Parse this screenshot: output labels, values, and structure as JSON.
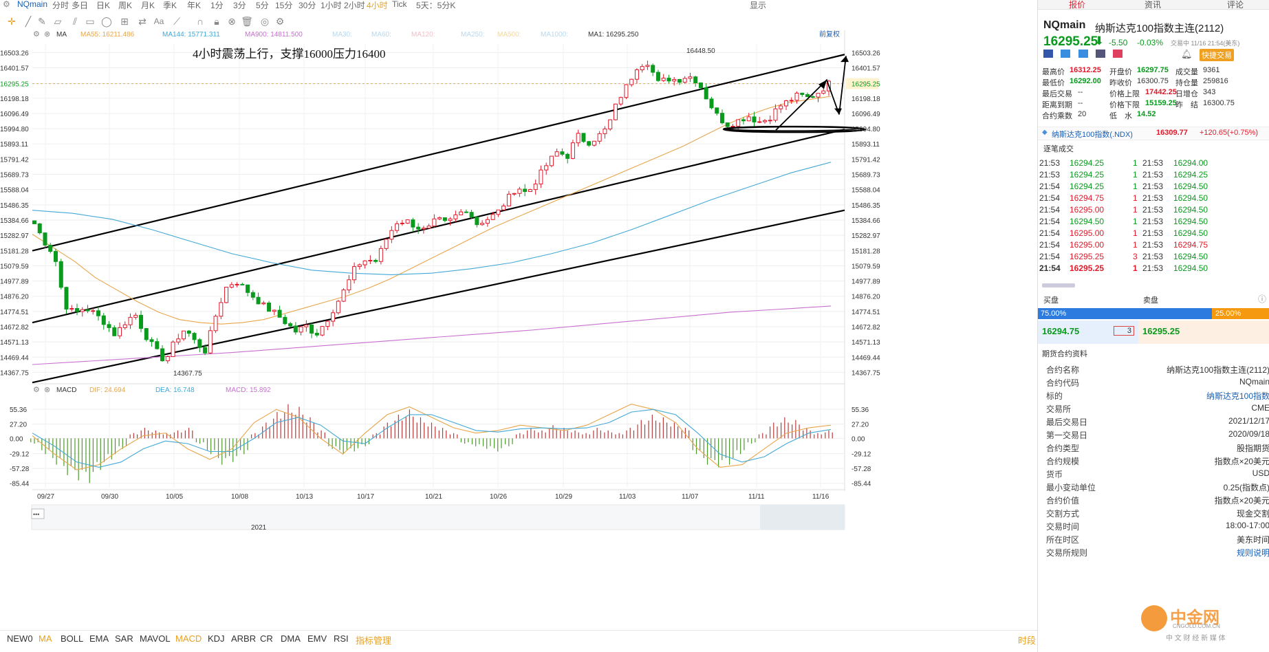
{
  "topbar": {
    "symbol": "NQmain",
    "periods": [
      "分时",
      "多日",
      "日K",
      "周K",
      "月K",
      "季K",
      "年K",
      "1分",
      "3分",
      "5分",
      "15分",
      "30分",
      "1小时",
      "2小时",
      "4小时",
      "Tick",
      "5天：5分K"
    ],
    "active_period": "4小时",
    "display_label": "显示"
  },
  "indicator_bar": {
    "ma_label": "MA",
    "ma55": "MA55: 16211.486",
    "ma144": "MA144: 15771.311",
    "ma900": "MA900: 14811.500",
    "ma30": "MA30:",
    "ma60": "MA60:",
    "ma120": "MA120:",
    "ma250": "MA250:",
    "ma500": "MA500:",
    "ma1000": "MA1000:",
    "ma1": "MA1: 16295.250",
    "fuquan": "前复权",
    "macd_label": "MACD",
    "dif": "DIF: 24.694",
    "dea": "DEA: 16.748",
    "macd": "MACD: 15.892"
  },
  "colors": {
    "up": "#e0192a",
    "down": "#0a9a1e",
    "ma55": "#e8a54a",
    "ma144": "#42a8d6",
    "ma900": "#c86fd0",
    "dif": "#e8a54a",
    "dea": "#42a8d6"
  },
  "chart_data": [
    {
      "type": "candlestick",
      "annotation": "4小时震荡上行，支撑16000压力16400",
      "current_price": "16295.25",
      "high_label": "16448.50",
      "low_label": "14367.75",
      "y_ticks": [
        "16503.26",
        "16401.57",
        "16295.25",
        "16198.18",
        "16096.49",
        "15994.80",
        "15893.11",
        "15791.42",
        "15689.73",
        "15588.04",
        "15486.35",
        "15384.66",
        "15282.97",
        "15181.28",
        "15079.59",
        "14977.89",
        "14876.20",
        "14774.51",
        "14672.82",
        "14571.13",
        "14469.44",
        "14367.75"
      ],
      "x_ticks": [
        "09/27",
        "09/30",
        "10/05",
        "10/08",
        "10/13",
        "10/17",
        "10/21",
        "10/26",
        "10/29",
        "11/03",
        "11/07",
        "11/11",
        "11/16"
      ],
      "ylim": [
        14310,
        16560
      ],
      "close_path": [
        15360,
        15240,
        15150,
        14820,
        14760,
        14800,
        14760,
        14700,
        14620,
        14700,
        14760,
        14620,
        14520,
        14440,
        14580,
        14660,
        14570,
        14510,
        14740,
        14930,
        14980,
        14920,
        14860,
        14800,
        14760,
        14700,
        14640,
        14680,
        14620,
        14710,
        14820,
        14940,
        15080,
        15120,
        15110,
        15260,
        15370,
        15380,
        15340,
        15310,
        15390,
        15360,
        15420,
        15460,
        15360,
        15390,
        15430,
        15520,
        15610,
        15560,
        15660,
        15760,
        15840,
        15810,
        15950,
        15900,
        15940,
        16000,
        16180,
        16290,
        16420,
        16440,
        16300,
        16330,
        16320,
        16350,
        16310,
        16180,
        16070,
        16020,
        16050,
        16080,
        16040,
        16060,
        16140,
        16180,
        16220,
        16200,
        16240,
        16295
      ],
      "ma55_path": [
        15290,
        15200,
        15110,
        15000,
        14920,
        14840,
        14770,
        14720,
        14700,
        14690,
        14700,
        14720,
        14760,
        14800,
        14840,
        14880,
        14930,
        14990,
        15060,
        15130,
        15200,
        15270,
        15340,
        15400,
        15460,
        15520,
        15580,
        15640,
        15700,
        15760,
        15820,
        15880,
        15950,
        16020,
        16080,
        16130,
        16170,
        16190,
        16211
      ],
      "ma144_path": [
        15450,
        15430,
        15390,
        15320,
        15240,
        15160,
        15100,
        15050,
        15030,
        15020,
        15030,
        15060,
        15100,
        15160,
        15230,
        15320,
        15420,
        15520,
        15610,
        15700,
        15771
      ],
      "ma900_path": [
        14420,
        14440,
        14460,
        14480,
        14500,
        14525,
        14550,
        14575,
        14600,
        14625,
        14650,
        14680,
        14710,
        14740,
        14770,
        14790,
        14811
      ],
      "channel_lines": [
        {
          "name": "upper-resistance",
          "y_start": 15180,
          "y_end": 16490
        },
        {
          "name": "middle-line",
          "y_start": 14700,
          "y_end": 15990
        },
        {
          "name": "lower-support",
          "y_start": 14300,
          "y_end": 15450
        }
      ]
    },
    {
      "type": "macd",
      "y_ticks": [
        "55.36",
        "27.20",
        "0.00",
        "-29.12",
        "-57.28",
        "-85.44"
      ],
      "ylim": [
        -95,
        75
      ],
      "histogram": [
        -10,
        -30,
        -50,
        -70,
        -80,
        -85,
        -60,
        -40,
        -20,
        10,
        20,
        15,
        10,
        15,
        20,
        -10,
        -30,
        -50,
        -45,
        -30,
        10,
        30,
        50,
        65,
        60,
        40,
        15,
        -20,
        -30,
        -25,
        -15,
        10,
        30,
        45,
        55,
        40,
        30,
        20,
        10,
        -10,
        -15,
        -20,
        -25,
        -15,
        10,
        20,
        15,
        25,
        20,
        15,
        10,
        20,
        15,
        10,
        20,
        35,
        45,
        40,
        30,
        20,
        -30,
        -50,
        -55,
        -50,
        -30,
        -10,
        10,
        30,
        40,
        35,
        20,
        10,
        15
      ],
      "dif_path": [
        5,
        -30,
        -60,
        -50,
        -20,
        5,
        10,
        -20,
        -40,
        -20,
        30,
        55,
        40,
        0,
        -30,
        10,
        45,
        60,
        40,
        20,
        10,
        15,
        25,
        20,
        15,
        25,
        45,
        65,
        55,
        30,
        -20,
        -55,
        -50,
        -20,
        10,
        20,
        25
      ],
      "dea_path": [
        10,
        -15,
        -45,
        -55,
        -45,
        -20,
        -5,
        -10,
        -25,
        -25,
        0,
        30,
        40,
        25,
        -5,
        -10,
        20,
        45,
        45,
        30,
        15,
        12,
        18,
        20,
        18,
        20,
        30,
        50,
        55,
        45,
        10,
        -30,
        -45,
        -35,
        -10,
        10,
        17
      ]
    }
  ],
  "bottom_tabs": [
    "NEW0",
    "MA",
    "BOLL",
    "EMA",
    "SAR",
    "MAVOL",
    "MACD",
    "KDJ",
    "ARBR",
    "CR",
    "DMA",
    "EMV",
    "RSI",
    "指标管理"
  ],
  "bottom_right": "时段",
  "timeline_year": "2021",
  "panel": {
    "tabs": [
      "报价",
      "资讯",
      "评论"
    ],
    "symbol": "NQmain",
    "name": "纳斯达克100指数主连(2112)",
    "price": "16295.25",
    "change": "-5.50",
    "change_pct": "-0.03%",
    "trade_time": "交易中 11/16 21:54(美东)",
    "quick_trade": "快捷交易",
    "stats": [
      {
        "label": "最高价",
        "value": "16312.25",
        "color": "red"
      },
      {
        "label": "开盘价",
        "value": "16297.75",
        "color": "grn"
      },
      {
        "label": "成交量",
        "value": "9361",
        "color": ""
      },
      {
        "label": "最低价",
        "value": "16292.00",
        "color": "grn"
      },
      {
        "label": "昨收价",
        "value": "16300.75",
        "color": ""
      },
      {
        "label": "持仓量",
        "value": "259816",
        "color": ""
      },
      {
        "label": "最后交易",
        "value": "--",
        "color": ""
      },
      {
        "label": "价格上限",
        "value": "17442.25",
        "color": "red"
      },
      {
        "label": "日增仓",
        "value": "343",
        "color": ""
      },
      {
        "label": "距离到期",
        "value": "--",
        "color": ""
      },
      {
        "label": "价格下限",
        "value": "15159.25",
        "color": "grn"
      },
      {
        "label": "昨　结",
        "value": "16300.75",
        "color": ""
      },
      {
        "label": "合约乘数",
        "value": "20",
        "color": ""
      },
      {
        "label": "低　水",
        "value": "14.52",
        "color": "grn"
      }
    ],
    "index_name": "纳斯达克100指数(.NDX)",
    "index_price": "16309.77",
    "index_change": "+120.65(+0.75%)",
    "trades_title": "逐笔成交",
    "trades": [
      {
        "t": "21:53",
        "p": "16294.25",
        "q": "1",
        "q_color": "grn",
        "t2": "21:53",
        "p2": "16294.00",
        "p2_color": "grn"
      },
      {
        "t": "21:53",
        "p": "16294.25",
        "q": "1",
        "q_color": "grn",
        "t2": "21:53",
        "p2": "16294.25",
        "p2_color": "grn"
      },
      {
        "t": "21:54",
        "p": "16294.25",
        "q": "1",
        "q_color": "grn",
        "t2": "21:53",
        "p2": "16294.50",
        "p2_color": "grn"
      },
      {
        "t": "21:54",
        "p": "16294.75",
        "q": "1",
        "q_color": "red",
        "t2": "21:53",
        "p2": "16294.50",
        "p2_color": "grn"
      },
      {
        "t": "21:54",
        "p": "16295.00",
        "q": "1",
        "q_color": "red",
        "t2": "21:53",
        "p2": "16294.50",
        "p2_color": "grn"
      },
      {
        "t": "21:54",
        "p": "16294.50",
        "q": "1",
        "q_color": "grn",
        "t2": "21:53",
        "p2": "16294.50",
        "p2_color": "grn"
      },
      {
        "t": "21:54",
        "p": "16295.00",
        "q": "1",
        "q_color": "red",
        "t2": "21:53",
        "p2": "16294.50",
        "p2_color": "grn"
      },
      {
        "t": "21:54",
        "p": "16295.00",
        "q": "1",
        "q_color": "red",
        "t2": "21:53",
        "p2": "16294.75",
        "p2_color": "red"
      },
      {
        "t": "21:54",
        "p": "16295.25",
        "q": "3",
        "q_color": "red",
        "t2": "21:53",
        "p2": "16294.50",
        "p2_color": "grn"
      },
      {
        "t": "21:54",
        "p": "16295.25",
        "q": "1",
        "q_color": "red",
        "t2": "21:53",
        "p2": "16294.50",
        "p2_color": "grn"
      }
    ],
    "buy_label": "买盘",
    "sell_label": "卖盘",
    "buy_pct": "75.00%",
    "sell_pct": "25.00%",
    "buy_ratio": 0.75,
    "bid": "16294.75",
    "ask": "16295.25",
    "bid_qty": "3",
    "contract_title": "期货合约资料",
    "contract": [
      {
        "k": "合约名称",
        "v": "纳斯达克100指数主连(2112)"
      },
      {
        "k": "合约代码",
        "v": "NQmain"
      },
      {
        "k": "标的",
        "v": "纳斯达克100指数"
      },
      {
        "k": "交易所",
        "v": "CME"
      },
      {
        "k": "最后交易日",
        "v": "2021/12/17"
      },
      {
        "k": "第一交易日",
        "v": "2020/09/18"
      },
      {
        "k": "合约类型",
        "v": "股指期货"
      },
      {
        "k": "合约规模",
        "v": "指数点×20美元"
      },
      {
        "k": "货币",
        "v": "USD"
      },
      {
        "k": "最小变动单位",
        "v": "0.25(指数点)"
      },
      {
        "k": "合约价值",
        "v": "指数点×20美元"
      },
      {
        "k": "交割方式",
        "v": "现金交割"
      },
      {
        "k": "交易时间",
        "v": "18:00-17:00"
      },
      {
        "k": "所在时区",
        "v": "美东时间"
      },
      {
        "k": "交易所规则",
        "v": "规则说明"
      }
    ],
    "watermark": "中金网",
    "watermark_sub": "CNGOLD.COM.CN",
    "watermark_sub2": "中 文 财 经 新 媒 体"
  }
}
